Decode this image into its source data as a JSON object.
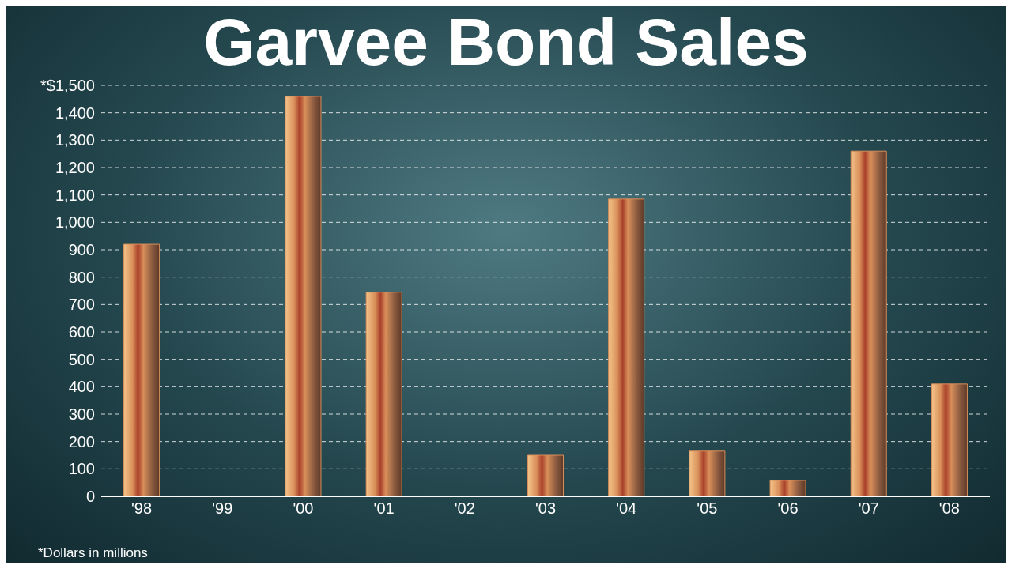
{
  "chart_data": {
    "type": "bar",
    "title": "Garvee Bond Sales",
    "categories": [
      "'98",
      "'99",
      "'00",
      "'01",
      "'02",
      "'03",
      "'04",
      "'05",
      "'06",
      "'07",
      "'08"
    ],
    "values": [
      920,
      0,
      1460,
      745,
      0,
      150,
      1085,
      165,
      58,
      1260,
      410
    ],
    "color": "#d98f5a",
    "ylim": [
      0,
      1500
    ],
    "yticks": [
      0,
      100,
      200,
      300,
      400,
      500,
      600,
      700,
      800,
      900,
      {
        "value": 1000,
        "label": "1,000"
      },
      {
        "value": 1100,
        "label": "1,100"
      },
      {
        "value": 1200,
        "label": "1,200"
      },
      {
        "value": 1300,
        "label": "1,300"
      },
      {
        "value": 1400,
        "label": "1,400"
      },
      {
        "value": 1500,
        "label": "*$1,500"
      }
    ],
    "grid": "y",
    "annotations": [
      "*Dollars in millions"
    ]
  }
}
